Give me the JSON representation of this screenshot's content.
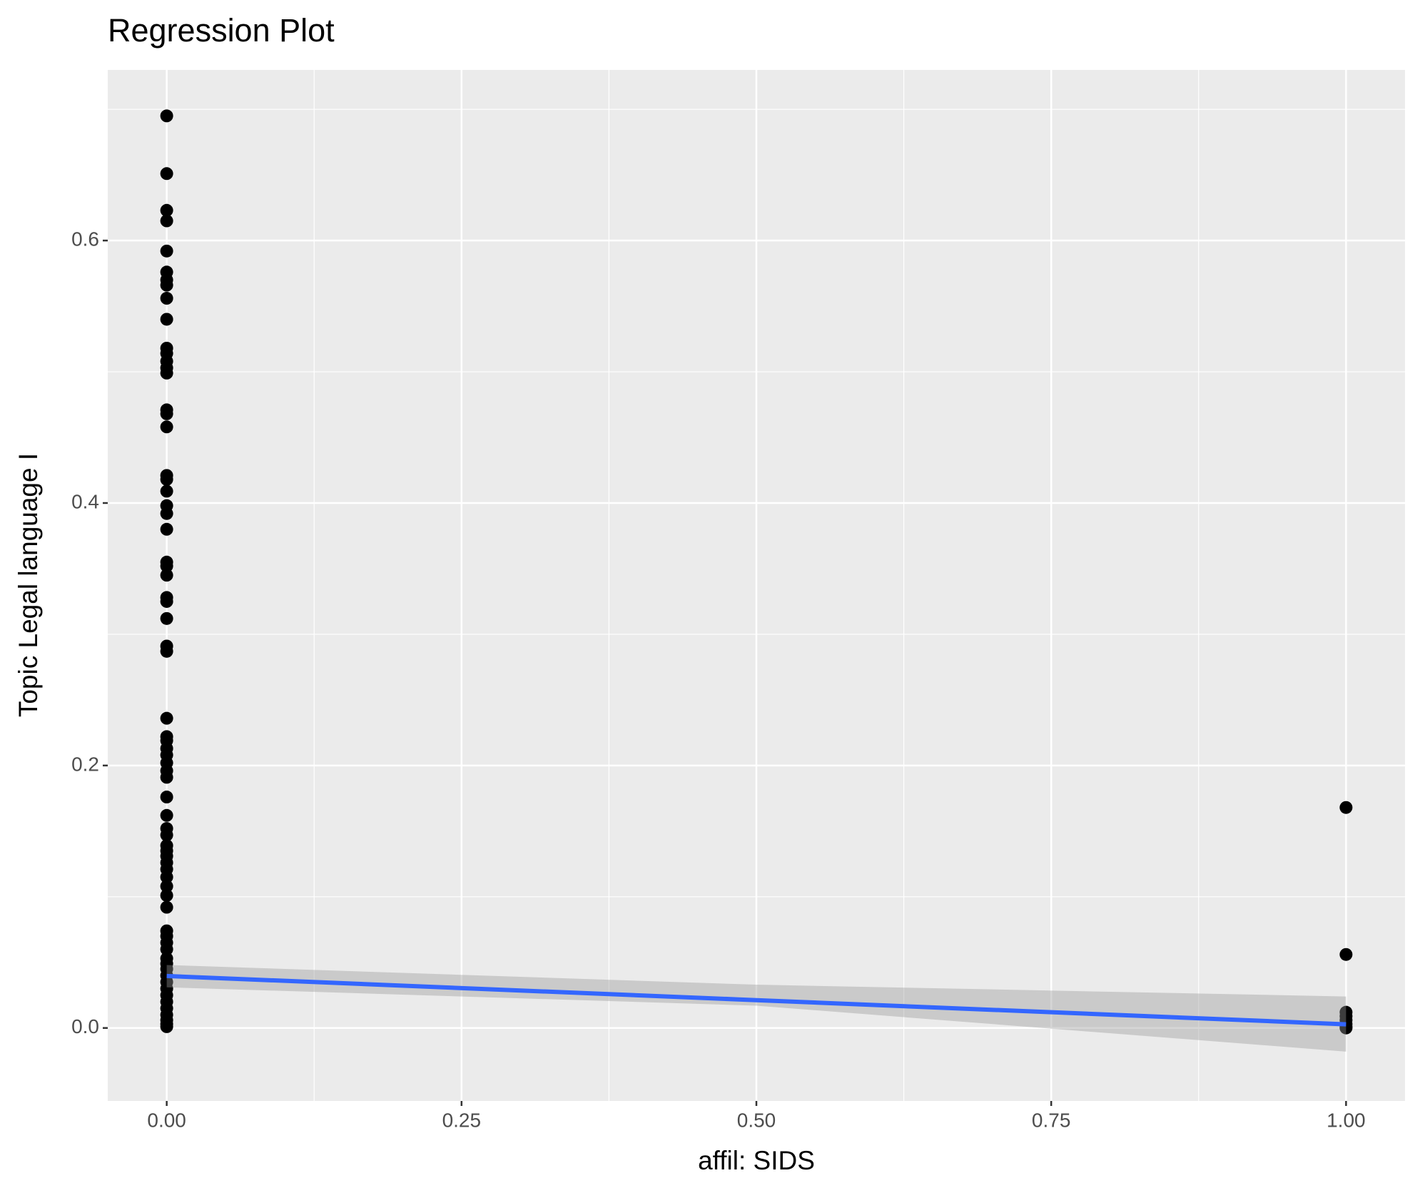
{
  "chart_data": {
    "type": "scatter",
    "title": "Regression Plot",
    "x_label": "affil: SIDS",
    "y_label": "Topic Legal language I",
    "xlim": [
      -0.05,
      1.05
    ],
    "ylim": [
      -0.0556,
      0.73
    ],
    "xticks": [
      {
        "value": 0,
        "label": "0.00"
      },
      {
        "value": 0.25,
        "label": "0.25"
      },
      {
        "value": 0.5,
        "label": "0.50"
      },
      {
        "value": 0.75,
        "label": "0.75"
      },
      {
        "value": 1,
        "label": "1.00"
      }
    ],
    "yticks": [
      {
        "value": 0,
        "label": "0.0"
      },
      0.2,
      0.4,
      0.6
    ],
    "x_minor_grid": [
      0.125,
      0.375,
      0.625,
      0.875
    ],
    "y_minor_grid": [
      0.1,
      0.3,
      0.5,
      0.7
    ],
    "grid": true,
    "background": "#ebebeb",
    "color": "#000000",
    "points": {
      "x": [
        0,
        0,
        0,
        0,
        0,
        0,
        0,
        0,
        0,
        0,
        0,
        0,
        0,
        0,
        0,
        0,
        0,
        0,
        0,
        0,
        0,
        0,
        0,
        0,
        0,
        0,
        0,
        0,
        0,
        0,
        0,
        0,
        0,
        0,
        0,
        0,
        0,
        0,
        0,
        0,
        0,
        0,
        0,
        0,
        0,
        0,
        0,
        0,
        0,
        0,
        0,
        0,
        0,
        0,
        0,
        0,
        0,
        0,
        0,
        0,
        0,
        0,
        0,
        0,
        0,
        0,
        0,
        0,
        0,
        0,
        1,
        1,
        1,
        1,
        1,
        1,
        1,
        1
      ],
      "y": [
        0.695,
        0.651,
        0.623,
        0.615,
        0.592,
        0.576,
        0.57,
        0.566,
        0.556,
        0.54,
        0.518,
        0.514,
        0.508,
        0.503,
        0.499,
        0.471,
        0.468,
        0.458,
        0.421,
        0.418,
        0.409,
        0.398,
        0.392,
        0.38,
        0.355,
        0.352,
        0.345,
        0.328,
        0.325,
        0.312,
        0.291,
        0.287,
        0.236,
        0.222,
        0.219,
        0.213,
        0.208,
        0.202,
        0.196,
        0.191,
        0.176,
        0.162,
        0.152,
        0.147,
        0.139,
        0.135,
        0.131,
        0.126,
        0.121,
        0.115,
        0.108,
        0.101,
        0.092,
        0.074,
        0.07,
        0.065,
        0.06,
        0.053,
        0.049,
        0.045,
        0.04,
        0.035,
        0.03,
        0.025,
        0.02,
        0.015,
        0.01,
        0.006,
        0.003,
        0.001,
        0.168,
        0.056,
        0.012,
        0.009,
        0.006,
        0.003,
        0.001,
        0.0
      ]
    },
    "fit": {
      "color": "#3366ff",
      "band_color": "#999999",
      "x": [
        0,
        0.5,
        1
      ],
      "values": [
        0.0396,
        0.0212,
        0.0028
      ],
      "lower": [
        0.031,
        0.017,
        -0.018
      ],
      "upper": [
        0.048,
        0.033,
        0.024
      ]
    }
  }
}
